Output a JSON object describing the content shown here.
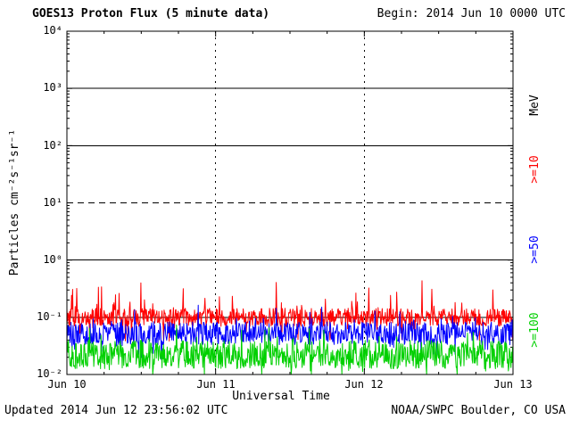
{
  "header": {
    "title": "GOES13 Proton Flux (5 minute data)",
    "begin_label": "Begin: 2014 Jun 10 0000 UTC"
  },
  "footer": {
    "updated": "Updated 2014 Jun 12 23:56:02 UTC",
    "source": "NOAA/SWPC Boulder, CO USA"
  },
  "chart_data": {
    "type": "line",
    "title": "GOES13 Proton Flux (5 minute data)",
    "begin": "2014 Jun 10 0000 UTC",
    "xlabel": "Universal Time",
    "ylabel": "Particles cm⁻²s⁻¹sr⁻¹",
    "right_axis_unit": "MeV",
    "x_ticks": [
      "Jun 10",
      "Jun 11",
      "Jun 12",
      "Jun 13"
    ],
    "y_ticks": [
      "10⁴",
      "10³",
      "10²",
      "10¹",
      "10⁰",
      "10⁻¹",
      "10⁻²"
    ],
    "ylim_log10": [
      -2,
      4
    ],
    "x_range_days": 3,
    "points_per_day": 288,
    "scale": "log",
    "grid": {
      "solid_decades_log10": [
        3,
        2,
        0,
        -1
      ],
      "dashed_decades_log10": [
        1
      ],
      "vertical_dashed_days": [
        1,
        2
      ]
    },
    "right_labels": [
      {
        "text": "MeV",
        "color": "#000000"
      },
      {
        "text": ">=10",
        "color": "#ff0000"
      },
      {
        "text": ">=50",
        "color": "#0000ff"
      },
      {
        "text": ">=100",
        "color": "#00d000"
      }
    ],
    "series": [
      {
        "name": ">=10",
        "unit": "MeV",
        "color": "#ff0000",
        "approx_mean_flux": 0.1,
        "baseline_log10": -1.0,
        "noise_dex": 0.16,
        "spike_prob": 0.06,
        "spike_dex": 0.5,
        "dip_prob": 0.05,
        "dip_dex": 0.35
      },
      {
        "name": ">=50",
        "unit": "MeV",
        "color": "#0000ff",
        "approx_mean_flux": 0.05,
        "baseline_log10": -1.28,
        "noise_dex": 0.2,
        "spike_prob": 0.05,
        "spike_dex": 0.35,
        "dip_prob": 0.06,
        "dip_dex": 0.3
      },
      {
        "name": ">=100",
        "unit": "MeV",
        "color": "#00d000",
        "approx_mean_flux": 0.022,
        "baseline_log10": -1.65,
        "noise_dex": 0.25,
        "spike_prob": 0.05,
        "spike_dex": 0.3,
        "dip_prob": 0.08,
        "dip_dex": 0.35
      }
    ],
    "seed": 20140612
  }
}
